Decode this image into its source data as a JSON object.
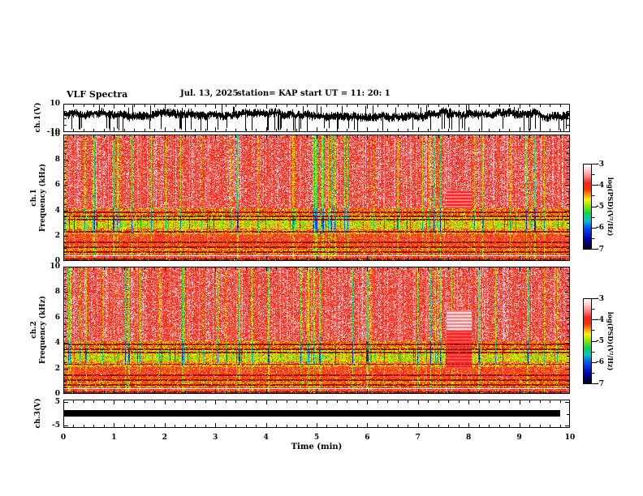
{
  "header": {
    "title": "VLF Spectra",
    "date": "Jul. 13, 2025",
    "station": "station= KAP",
    "start_ut": "start UT =  11: 20: 1"
  },
  "xaxis": {
    "label": "Time (min)",
    "ticks": [
      "0",
      "1",
      "2",
      "3",
      "4",
      "5",
      "6",
      "7",
      "8",
      "9",
      "10"
    ],
    "range": [
      0,
      10
    ],
    "minor_step_min": 0.2
  },
  "panels": {
    "ch1_wave": {
      "ylabel": "ch.1(V)",
      "ytop": "10",
      "ybottom": "-10",
      "ylim": [
        -10,
        10
      ]
    },
    "ch1_spec": {
      "ylabel_channel": "ch.1",
      "ylabel_axis": "Frequency (kHz)",
      "yticks": [
        "0",
        "2",
        "4",
        "6",
        "8",
        "10"
      ],
      "ylim": [
        0,
        10
      ]
    },
    "ch2_spec": {
      "ylabel_channel": "ch.2",
      "ylabel_axis": "Frequency (kHz)",
      "yticks": [
        "0",
        "2",
        "4",
        "6",
        "8",
        "10"
      ],
      "ylim": [
        0,
        10
      ]
    },
    "ch3_wave": {
      "ylabel": "ch.3(V)",
      "ytop": "5",
      "ybottom": "-5",
      "ylim": [
        -6,
        6
      ]
    }
  },
  "colorbar": {
    "label": "log(PSD)(V²/Hz)",
    "ticks": [
      "-3",
      "-4",
      "-5",
      "-6",
      "-7"
    ],
    "range": [
      -3,
      -7
    ]
  },
  "palette": {
    "stops": [
      [
        0.0,
        "#000020"
      ],
      [
        0.12,
        "#0000b0"
      ],
      [
        0.24,
        "#0048ff"
      ],
      [
        0.34,
        "#00c8c0"
      ],
      [
        0.42,
        "#00d850"
      ],
      [
        0.5,
        "#80e800"
      ],
      [
        0.58,
        "#fff000"
      ],
      [
        0.64,
        "#ff9800"
      ],
      [
        0.7,
        "#ff3000"
      ],
      [
        0.78,
        "#ff2020"
      ],
      [
        0.86,
        "#ff8888"
      ],
      [
        0.94,
        "#ffd8d8"
      ],
      [
        1.0,
        "#ffffff"
      ]
    ]
  },
  "chart_data": [
    {
      "type": "line",
      "name": "ch.1 time series",
      "ylabel": "ch.1(V)",
      "xlim": [
        0,
        10
      ],
      "ylim": [
        -10,
        10
      ],
      "description": "Dense black broadband-noise waveform centred near +2 V with ±4 V envelope and frequent spikes reaching -10 V and +10 V",
      "seed": 20250713,
      "center": 2.2,
      "envelope": 2.6,
      "spike_down_prob": 0.1,
      "spike_up_prob": 0.035
    },
    {
      "type": "heatmap",
      "name": "ch.1 spectrogram",
      "xlabel": "Time (min)",
      "ylabel": "Frequency (kHz)",
      "zlabel": "log(PSD)(V²/Hz)",
      "xlim": [
        0,
        10
      ],
      "ylim": [
        0,
        10
      ],
      "zlim": [
        -7,
        -3
      ],
      "description": "Mostly red/orange noise above 4 kHz with vertical yellow-green streaks; green-yellow band 2.5-4 kHz; orange-red banding below 2 kHz; thin dark-red horizontal lines; hot whitish line near 0.45 kHz",
      "seed": 101,
      "bands": [
        [
          4.2,
          10.01,
          -3.75
        ],
        [
          3.6,
          4.2,
          -4.35
        ],
        [
          2.6,
          3.6,
          -4.75
        ],
        [
          2.15,
          2.6,
          -4.45
        ],
        [
          1.15,
          2.15,
          -4.05
        ],
        [
          0.55,
          1.15,
          -4.3
        ],
        [
          0.25,
          0.55,
          -4.0
        ],
        [
          0,
          0.25,
          -4.4
        ]
      ],
      "dark_lines_khz": [
        0.15,
        0.75,
        1.1,
        1.5,
        2.35,
        3.3,
        3.55,
        3.9
      ],
      "hot_line_khz": 0.45,
      "green_streak_prob": 0.13,
      "block": {
        "x0": 7.55,
        "x1": 8.05,
        "zones": [
          {
            "f0": 4.2,
            "f1": 5.6,
            "v_even": -3.6,
            "v_odd": -3.88
          }
        ]
      }
    },
    {
      "type": "heatmap",
      "name": "ch.2 spectrogram",
      "xlabel": "Time (min)",
      "ylabel": "Frequency (kHz)",
      "zlabel": "log(PSD)(V²/Hz)",
      "xlim": [
        0,
        10
      ],
      "ylim": [
        0,
        10
      ],
      "zlim": [
        -7,
        -3
      ],
      "description": "Same noise structure as ch.1; solid red interference block 7.55-8.05 min between 2-5 kHz with pink striped rows 5-6.6 kHz",
      "seed": 202,
      "bands": [
        [
          4.2,
          10.01,
          -3.75
        ],
        [
          3.6,
          4.2,
          -4.35
        ],
        [
          2.6,
          3.6,
          -4.75
        ],
        [
          2.15,
          2.6,
          -4.45
        ],
        [
          1.15,
          2.15,
          -4.05
        ],
        [
          0.55,
          1.15,
          -4.3
        ],
        [
          0.25,
          0.55,
          -4.0
        ],
        [
          0,
          0.25,
          -4.4
        ]
      ],
      "dark_lines_khz": [
        0.15,
        0.75,
        1.1,
        1.5,
        2.35,
        3.3,
        3.55,
        3.9
      ],
      "hot_line_khz": 0.45,
      "green_streak_prob": 0.13,
      "block": {
        "x0": 7.55,
        "x1": 8.05,
        "zones": [
          {
            "f0": 2.0,
            "f1": 5.0,
            "v_even": -3.72,
            "v_odd": -3.92
          },
          {
            "f0": 5.0,
            "f1": 6.6,
            "v_even": -3.2,
            "v_odd": -3.58
          }
        ]
      }
    },
    {
      "type": "line",
      "name": "ch.3 time series",
      "ylabel": "ch.3(V)",
      "xlim": [
        0,
        10
      ],
      "ylim": [
        -6,
        6
      ],
      "description": "Flat saturated-looking trace at ~0 V, ±1.35 V thick, extending from 0 to 9.8 min",
      "value": 0.2,
      "half_width": 1.35,
      "x_end": 9.8
    }
  ]
}
